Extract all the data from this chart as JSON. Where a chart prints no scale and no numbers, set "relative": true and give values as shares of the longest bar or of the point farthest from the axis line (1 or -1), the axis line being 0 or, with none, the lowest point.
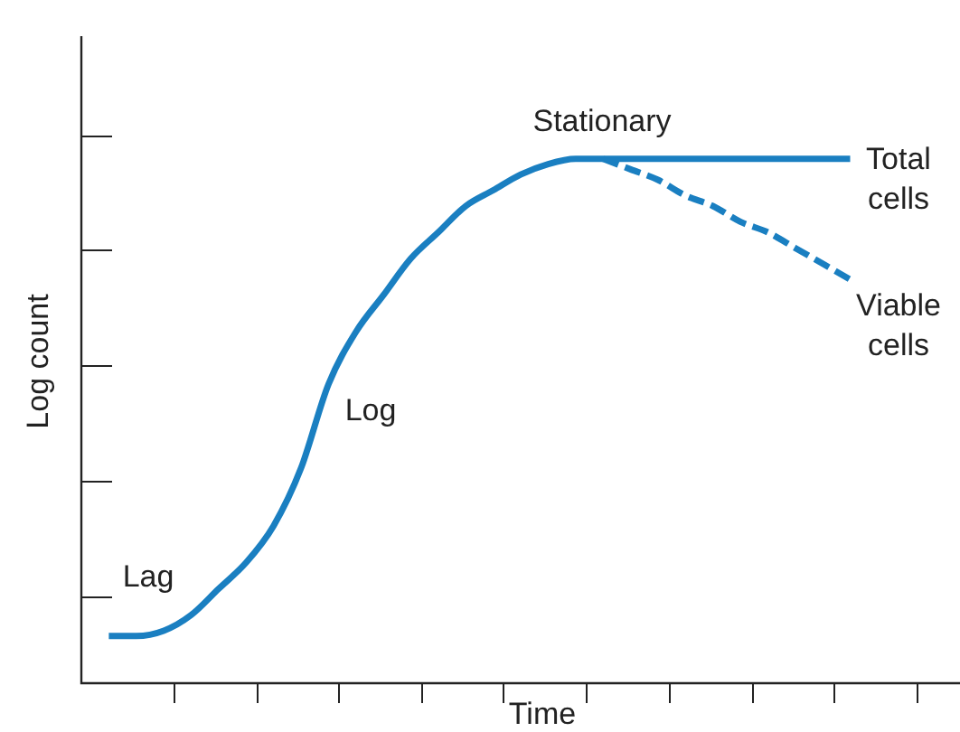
{
  "chart_data": {
    "type": "line",
    "relative": true,
    "xlabel": "Time",
    "ylabel": "Log count",
    "legend": false,
    "marker": "none",
    "categories": [
      null,
      null,
      null,
      null,
      null,
      null,
      null,
      null,
      null,
      null,
      null,
      null,
      null,
      null,
      null,
      null,
      null,
      null,
      null,
      null,
      null,
      null,
      null,
      null,
      null,
      null,
      null,
      null,
      null,
      null,
      null,
      null,
      null
    ],
    "series": [
      {
        "name": "Total cells",
        "color": "#1a7fc1",
        "line_style": "solid",
        "values": [
          null,
          0.09,
          0.09,
          0.1,
          0.13,
          0.18,
          0.23,
          0.3,
          0.41,
          0.57,
          0.67,
          0.74,
          0.81,
          0.86,
          0.91,
          0.94,
          0.97,
          0.99,
          1.0,
          1,
          1,
          1,
          1,
          1,
          1,
          1,
          1,
          1,
          1,
          null,
          null,
          null,
          null
        ]
      },
      {
        "name": "Viable cells",
        "color": "#1a7fc1",
        "line_style": "dashed",
        "values": [
          null,
          null,
          null,
          null,
          null,
          null,
          null,
          null,
          null,
          null,
          null,
          null,
          null,
          null,
          null,
          null,
          null,
          null,
          null,
          1,
          0.98,
          0.96,
          0.93,
          0.91,
          0.88,
          0.86,
          0.83,
          0.8,
          0.77,
          null,
          null,
          null,
          null
        ]
      }
    ],
    "annotations": [
      "Stationary",
      "Log",
      "Lag"
    ]
  }
}
